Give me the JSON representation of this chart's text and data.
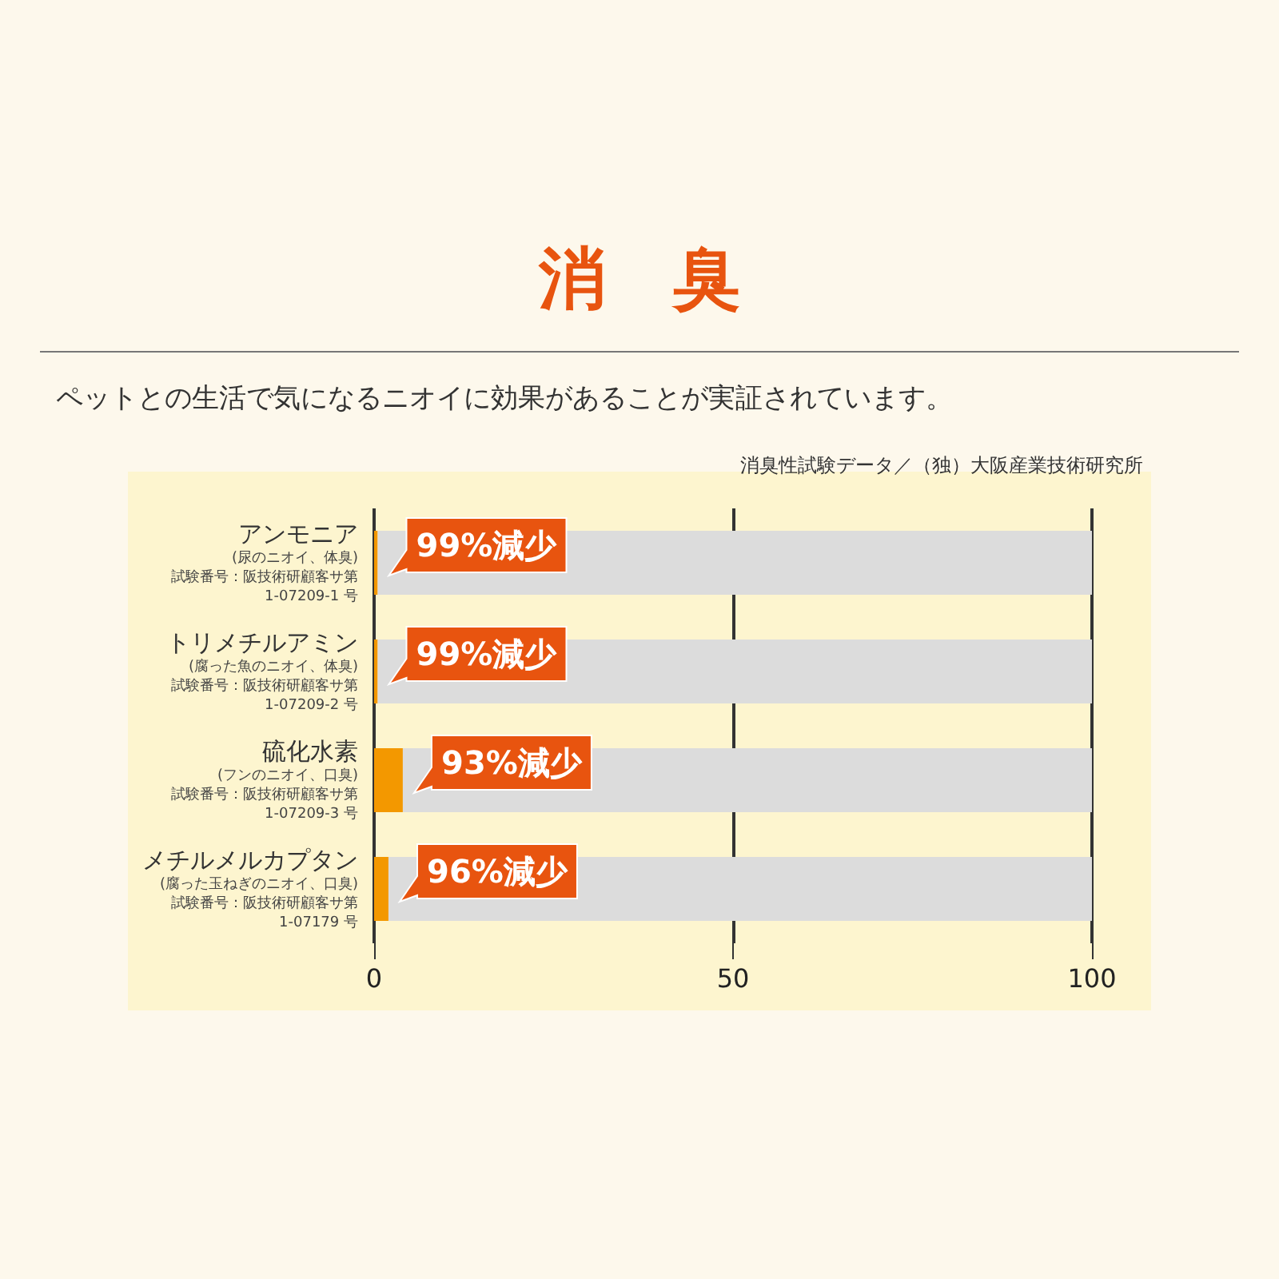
{
  "chart_data": {
    "type": "bar",
    "orientation": "horizontal",
    "title": "消　臭",
    "subtitle": "ペットとの生活で気になるニオイに効果があることが実証されています。",
    "categories": [
      "アンモニア\n(尿のニオイ、体臭)\n試験番号：阪技術研顧客サ第\n1-07209-1 号",
      "トリメチルアミン\n(腐った魚のニオイ、体臭)\n試験番号：阪技術研顧客サ第\n1-07209-2 号",
      "硫化水素\n(フンのニオイ、口臭)\n試験番号：阪技術研顧客サ第\n1-07209-3 号",
      "メチルメルカプタン\n(腐った玉ねぎのニオイ、口臭)\n試験番号：阪技術研顧客サ第\n1-07179 号"
    ],
    "series": [
      {
        "color": "#f39800",
        "values": [
          0.5,
          0.5,
          4,
          2
        ]
      },
      {
        "color": "#dcdcdc",
        "values": [
          99.5,
          99.5,
          96,
          98
        ]
      }
    ],
    "stacked": true,
    "xlim": [
      0,
      100
    ],
    "xticks": [
      0,
      50,
      100
    ],
    "grid": "x",
    "annotations": [
      "消臭性試験データ／（独）大阪産業技術研究所",
      {
        "text": "99%減少",
        "x": 0.5,
        "y": "アンモニア\n(尿のニオイ、体臭)\n試験番号：阪技術研顧客サ第\n1-07209-1 号"
      },
      {
        "text": "99%減少",
        "x": 0.5,
        "y": "トリメチルアミン\n(腐った魚のニオイ、体臭)\n試験番号：阪技術研顧客サ第\n1-07209-2 号"
      },
      {
        "text": "93%減少",
        "x": 4,
        "y": "硫化水素\n(フンのニオイ、口臭)\n試験番号：阪技術研顧客サ第\n1-07209-3 号"
      },
      {
        "text": "96%減少",
        "x": 2,
        "y": "メチルメルカプタン\n(腐った玉ねぎのニオイ、口臭)\n試験番号：阪技術研顧客サ第\n1-07179 号"
      }
    ]
  }
}
